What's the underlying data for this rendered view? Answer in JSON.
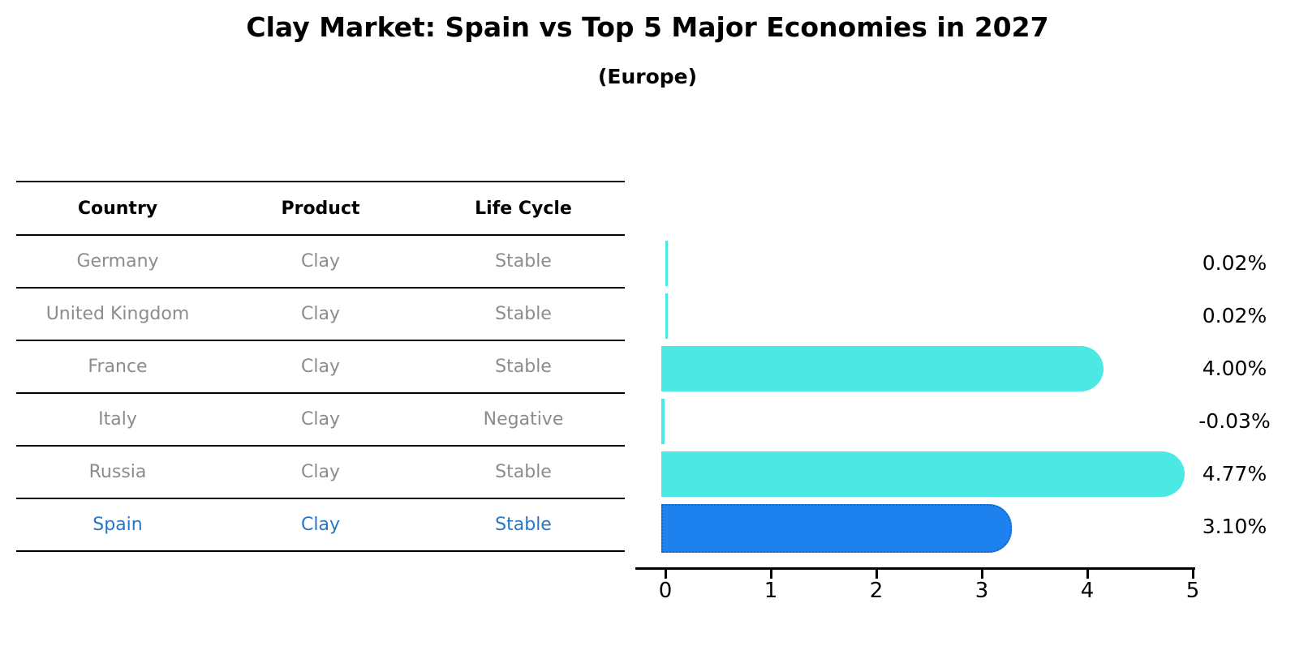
{
  "title": "Clay Market: Spain vs Top 5 Major Economies in 2027",
  "subtitle": "(Europe)",
  "table": {
    "headers": [
      "Country",
      "Product",
      "Life Cycle"
    ],
    "rows": [
      {
        "country": "Germany",
        "product": "Clay",
        "life_cycle": "Stable",
        "highlighted": false
      },
      {
        "country": "United Kingdom",
        "product": "Clay",
        "life_cycle": "Stable",
        "highlighted": false
      },
      {
        "country": "France",
        "product": "Clay",
        "life_cycle": "Stable",
        "highlighted": false
      },
      {
        "country": "Italy",
        "product": "Clay",
        "life_cycle": "Negative",
        "highlighted": false
      },
      {
        "country": "Russia",
        "product": "Clay",
        "life_cycle": "Stable",
        "highlighted": false
      },
      {
        "country": "Spain",
        "product": "Clay",
        "life_cycle": "Stable",
        "highlighted": true
      }
    ]
  },
  "chart_data": {
    "type": "bar",
    "orientation": "horizontal",
    "title": "Clay Market: Spain vs Top 5 Major Economies in 2027 (Europe)",
    "categories": [
      "Germany",
      "United Kingdom",
      "France",
      "Italy",
      "Russia",
      "Spain"
    ],
    "values": [
      0.02,
      0.02,
      4.0,
      -0.03,
      4.77,
      3.1
    ],
    "value_labels": [
      "0.02%",
      "0.02%",
      "4.00%",
      "-0.03%",
      "4.77%",
      "3.10%"
    ],
    "x_ticks": [
      0,
      1,
      2,
      3,
      4,
      5
    ],
    "x_tick_labels": [
      "0",
      "1",
      "2",
      "3",
      "4",
      "5"
    ],
    "xlim": [
      0,
      5
    ],
    "grid": false,
    "legend": "none",
    "highlight_index": 5,
    "bar_color": "#4be8e4",
    "highlight_color": "#1e82ee",
    "highlight_border_color": "#1263ce"
  },
  "colors": {
    "background": "#ffffff",
    "table_text_gray": "#8c8c8c",
    "highlight_text_blue": "#2577c8",
    "axis_black": "#000000"
  }
}
